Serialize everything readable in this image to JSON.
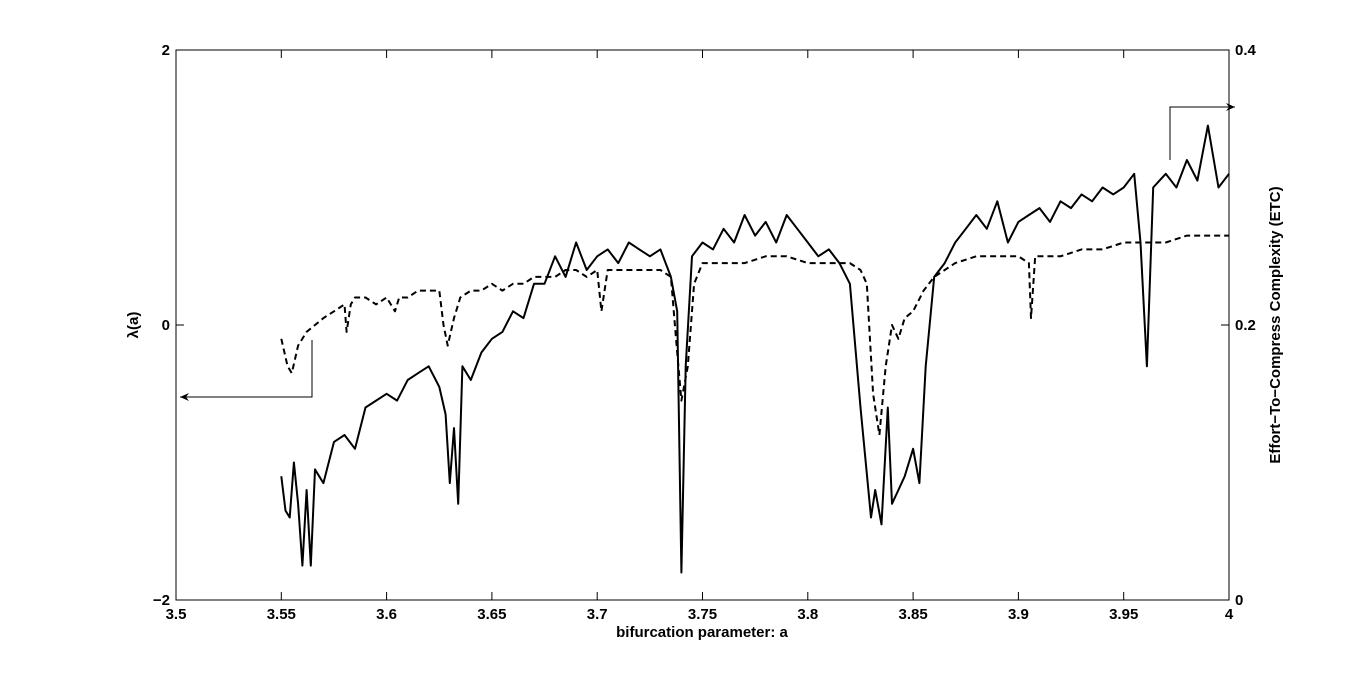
{
  "chart_data": {
    "type": "line",
    "xlabel": "bifurcation parameter: a",
    "ylabel_left": "λ(a)",
    "ylabel_right": "Effort−To−Compress Complexity (ETC)",
    "xlim": [
      3.5,
      4.0
    ],
    "ylim_left": [
      -2,
      2
    ],
    "ylim_right": [
      0,
      0.4
    ],
    "x_ticks": [
      "3.5",
      "3.55",
      "3.6",
      "3.65",
      "3.7",
      "3.75",
      "3.8",
      "3.85",
      "3.9",
      "3.95",
      "4"
    ],
    "y_left_ticks": [
      "−2",
      "0",
      "2"
    ],
    "y_right_ticks": [
      "0",
      "0.2",
      "0.4"
    ],
    "grid": false,
    "series": [
      {
        "style": "solid",
        "axis": "left",
        "x": [
          3.55,
          3.552,
          3.554,
          3.556,
          3.558,
          3.56,
          3.562,
          3.564,
          3.566,
          3.568,
          3.57,
          3.575,
          3.58,
          3.585,
          3.59,
          3.595,
          3.6,
          3.605,
          3.61,
          3.615,
          3.62,
          3.625,
          3.628,
          3.63,
          3.632,
          3.634,
          3.636,
          3.64,
          3.645,
          3.65,
          3.655,
          3.66,
          3.665,
          3.67,
          3.675,
          3.68,
          3.685,
          3.69,
          3.695,
          3.7,
          3.705,
          3.71,
          3.715,
          3.72,
          3.725,
          3.73,
          3.735,
          3.738,
          3.74,
          3.742,
          3.745,
          3.75,
          3.755,
          3.76,
          3.765,
          3.77,
          3.775,
          3.78,
          3.785,
          3.79,
          3.795,
          3.8,
          3.805,
          3.81,
          3.815,
          3.82,
          3.825,
          3.83,
          3.832,
          3.835,
          3.838,
          3.84,
          3.843,
          3.846,
          3.85,
          3.853,
          3.856,
          3.86,
          3.865,
          3.87,
          3.875,
          3.88,
          3.885,
          3.89,
          3.895,
          3.9,
          3.905,
          3.91,
          3.915,
          3.92,
          3.925,
          3.93,
          3.935,
          3.94,
          3.945,
          3.95,
          3.955,
          3.958,
          3.961,
          3.964,
          3.967,
          3.97,
          3.975,
          3.98,
          3.985,
          3.99,
          3.995,
          4.0
        ],
        "y": [
          -1.1,
          -1.35,
          -1.4,
          -1.0,
          -1.3,
          -1.75,
          -1.2,
          -1.75,
          -1.05,
          -1.1,
          -1.15,
          -0.85,
          -0.8,
          -0.9,
          -0.6,
          -0.55,
          -0.5,
          -0.55,
          -0.4,
          -0.35,
          -0.3,
          -0.45,
          -0.65,
          -1.15,
          -0.75,
          -1.3,
          -0.3,
          -0.4,
          -0.2,
          -0.1,
          -0.05,
          0.1,
          0.05,
          0.3,
          0.3,
          0.5,
          0.35,
          0.6,
          0.4,
          0.5,
          0.55,
          0.45,
          0.6,
          0.55,
          0.5,
          0.55,
          0.35,
          0.1,
          -1.8,
          -0.3,
          0.5,
          0.6,
          0.55,
          0.7,
          0.6,
          0.8,
          0.65,
          0.75,
          0.6,
          0.8,
          0.7,
          0.6,
          0.5,
          0.55,
          0.45,
          0.3,
          -0.6,
          -1.4,
          -1.2,
          -1.45,
          -0.6,
          -1.3,
          -1.2,
          -1.1,
          -0.9,
          -1.15,
          -0.3,
          0.35,
          0.45,
          0.6,
          0.7,
          0.8,
          0.7,
          0.9,
          0.6,
          0.75,
          0.8,
          0.85,
          0.75,
          0.9,
          0.85,
          0.95,
          0.9,
          1.0,
          0.95,
          1.0,
          1.1,
          0.6,
          -0.3,
          1.0,
          1.05,
          1.1,
          1.0,
          1.2,
          1.05,
          1.45,
          1.0,
          1.1
        ]
      },
      {
        "style": "dashed",
        "axis": "left",
        "x": [
          3.55,
          3.553,
          3.555,
          3.558,
          3.562,
          3.566,
          3.57,
          3.575,
          3.58,
          3.581,
          3.583,
          3.585,
          3.59,
          3.595,
          3.6,
          3.604,
          3.606,
          3.61,
          3.615,
          3.62,
          3.625,
          3.627,
          3.629,
          3.632,
          3.635,
          3.64,
          3.645,
          3.65,
          3.655,
          3.66,
          3.665,
          3.67,
          3.675,
          3.68,
          3.685,
          3.69,
          3.695,
          3.7,
          3.702,
          3.705,
          3.71,
          3.72,
          3.73,
          3.735,
          3.738,
          3.74,
          3.743,
          3.746,
          3.75,
          3.76,
          3.77,
          3.78,
          3.79,
          3.8,
          3.81,
          3.82,
          3.825,
          3.828,
          3.831,
          3.834,
          3.837,
          3.84,
          3.843,
          3.846,
          3.85,
          3.855,
          3.86,
          3.87,
          3.88,
          3.89,
          3.9,
          3.905,
          3.906,
          3.908,
          3.91,
          3.92,
          3.93,
          3.94,
          3.95,
          3.96,
          3.97,
          3.98,
          3.99,
          4.0
        ],
        "y": [
          -0.1,
          -0.3,
          -0.35,
          -0.15,
          -0.05,
          0.0,
          0.05,
          0.1,
          0.15,
          -0.05,
          0.15,
          0.2,
          0.2,
          0.15,
          0.2,
          0.1,
          0.2,
          0.2,
          0.25,
          0.25,
          0.25,
          0.0,
          -0.15,
          0.05,
          0.2,
          0.25,
          0.25,
          0.3,
          0.25,
          0.3,
          0.3,
          0.35,
          0.35,
          0.35,
          0.4,
          0.4,
          0.35,
          0.4,
          0.1,
          0.4,
          0.4,
          0.4,
          0.4,
          0.35,
          -0.2,
          -0.55,
          -0.3,
          0.3,
          0.45,
          0.45,
          0.45,
          0.5,
          0.5,
          0.45,
          0.45,
          0.45,
          0.4,
          0.3,
          -0.5,
          -0.8,
          -0.3,
          0.0,
          -0.1,
          0.05,
          0.1,
          0.25,
          0.35,
          0.45,
          0.5,
          0.5,
          0.5,
          0.45,
          0.05,
          0.5,
          0.5,
          0.5,
          0.55,
          0.55,
          0.6,
          0.6,
          0.6,
          0.65,
          0.65,
          0.65
        ]
      }
    ]
  }
}
